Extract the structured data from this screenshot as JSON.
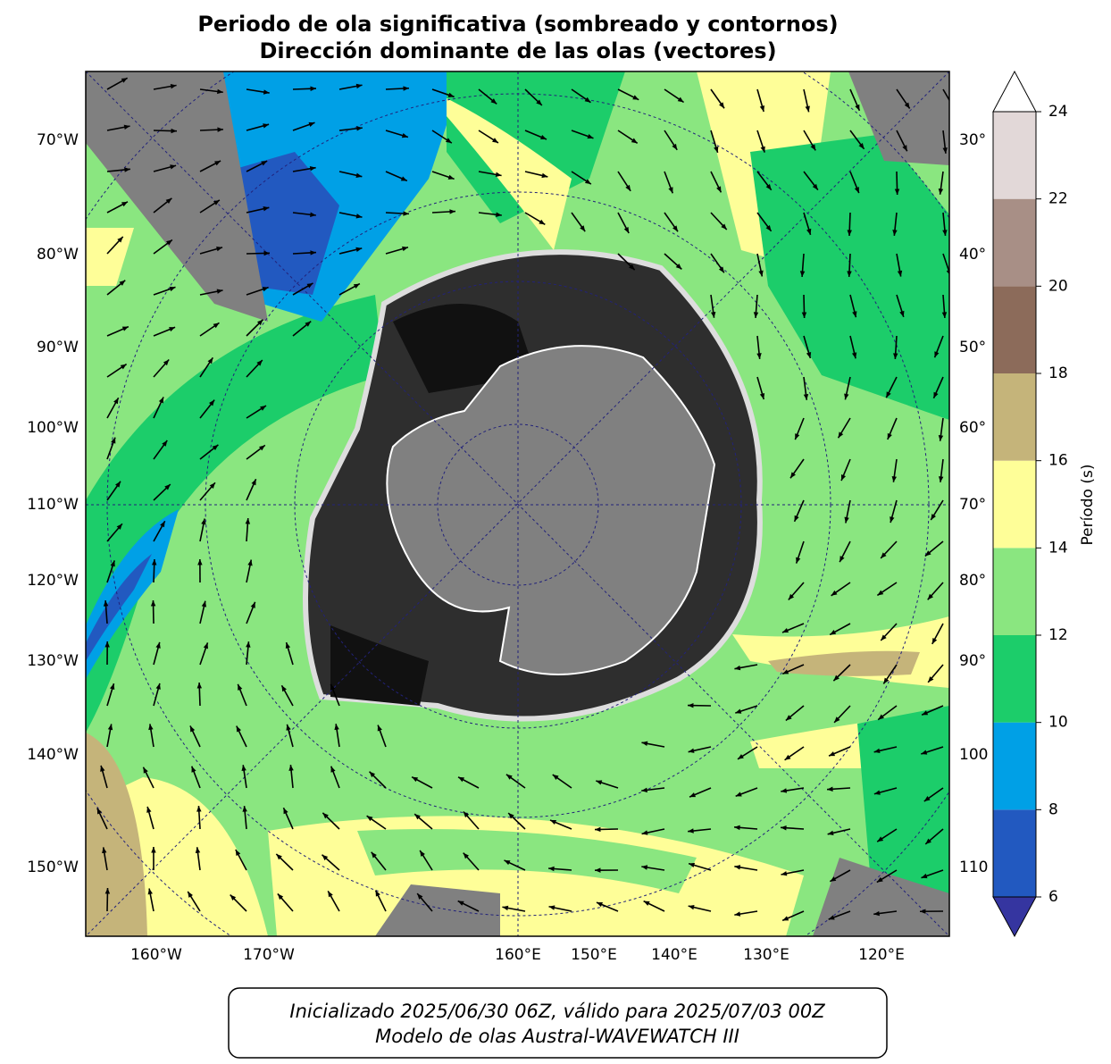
{
  "title": [
    "Periodo de ola significativa (sombreado y contornos)",
    "Dirección dominante de las olas (vectores)"
  ],
  "left_labels": [
    "70°W",
    "80°W",
    "90°W",
    "100°W",
    "110°W",
    "120°W",
    "130°W",
    "140°W",
    "150°W"
  ],
  "right_labels": [
    "30°",
    "40°",
    "50°",
    "60°",
    "70°",
    "80°",
    "90°",
    "100",
    "110"
  ],
  "bottom_labels": [
    "160°W",
    "170°W",
    "160°E",
    "150°E",
    "140°E",
    "130°E",
    "120°E"
  ],
  "colorbar": {
    "label": "Período (s)",
    "ticks": [
      6,
      8,
      10,
      12,
      14,
      16,
      18,
      20,
      22,
      24
    ],
    "colors": [
      "#2259c0",
      "#00a0e6",
      "#1ccd6a",
      "#8ae680",
      "#fefe98",
      "#c5b47a",
      "#8c6b5a",
      "#a88f86",
      "#e2d8d8"
    ],
    "under_color": "#3535a0",
    "over_color": "#ffffff"
  },
  "footer": [
    "Inicializado 2025/06/30 06Z, válido para 2025/07/03 00Z",
    "Modelo de olas Austral-WAVEWATCH III"
  ]
}
